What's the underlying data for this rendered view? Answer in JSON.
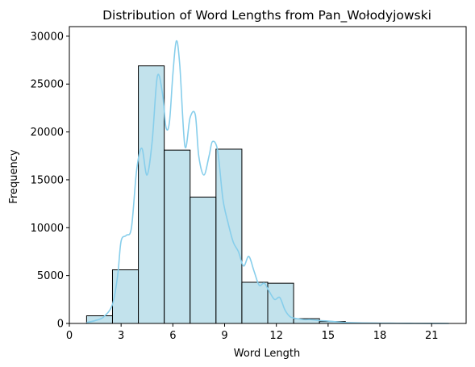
{
  "chart_data": {
    "type": "bar",
    "title": "Distribution of Word Lengths from Pan_Wołodyjowski",
    "xlabel": "Word Length",
    "ylabel": "Frequency",
    "xlim": [
      0,
      23
    ],
    "ylim": [
      0,
      31000
    ],
    "xticks": [
      0,
      3,
      6,
      9,
      12,
      15,
      18,
      21
    ],
    "yticks": [
      0,
      5000,
      10000,
      15000,
      20000,
      25000,
      30000
    ],
    "grid": false,
    "bar_color": "#add8e6",
    "bar_edge_color": "#000000",
    "kde_color": "#87ceeb",
    "bins": [
      {
        "x0": 1.0,
        "x1": 2.5,
        "count": 800
      },
      {
        "x0": 2.5,
        "x1": 4.0,
        "count": 5600
      },
      {
        "x0": 4.0,
        "x1": 5.5,
        "count": 26900
      },
      {
        "x0": 5.5,
        "x1": 7.0,
        "count": 18100
      },
      {
        "x0": 7.0,
        "x1": 8.5,
        "count": 13200
      },
      {
        "x0": 8.5,
        "x1": 10.0,
        "count": 18200
      },
      {
        "x0": 10.0,
        "x1": 11.5,
        "count": 4300
      },
      {
        "x0": 11.5,
        "x1": 13.0,
        "count": 4200
      },
      {
        "x0": 13.0,
        "x1": 14.5,
        "count": 500
      },
      {
        "x0": 14.5,
        "x1": 16.0,
        "count": 200
      }
    ],
    "kde": {
      "x": [
        1,
        1.5,
        2,
        2.5,
        2.8,
        3.0,
        3.3,
        3.6,
        3.9,
        4.2,
        4.5,
        4.8,
        5.1,
        5.4,
        5.6,
        5.8,
        6.0,
        6.2,
        6.4,
        6.7,
        7.0,
        7.3,
        7.5,
        7.8,
        8.1,
        8.3,
        8.6,
        8.9,
        9.2,
        9.5,
        9.8,
        10.1,
        10.4,
        10.7,
        11.0,
        11.3,
        11.6,
        11.9,
        12.2,
        12.5,
        12.8,
        13.2,
        13.6,
        14.0,
        14.5,
        15.0,
        16.0,
        17.0,
        18.0,
        19.0,
        20.0,
        21.0,
        22.0
      ],
      "y": [
        100,
        300,
        700,
        2000,
        5000,
        8600,
        9200,
        10000,
        16000,
        18300,
        15500,
        19000,
        25800,
        24000,
        20500,
        21000,
        26000,
        29500,
        27000,
        18500,
        21500,
        21800,
        17500,
        15500,
        17500,
        19000,
        18000,
        13000,
        10500,
        8500,
        7500,
        6000,
        7000,
        5500,
        4000,
        4200,
        3300,
        2500,
        2700,
        1400,
        700,
        500,
        400,
        400,
        300,
        250,
        100,
        50,
        30,
        20,
        10,
        5,
        0
      ]
    }
  }
}
